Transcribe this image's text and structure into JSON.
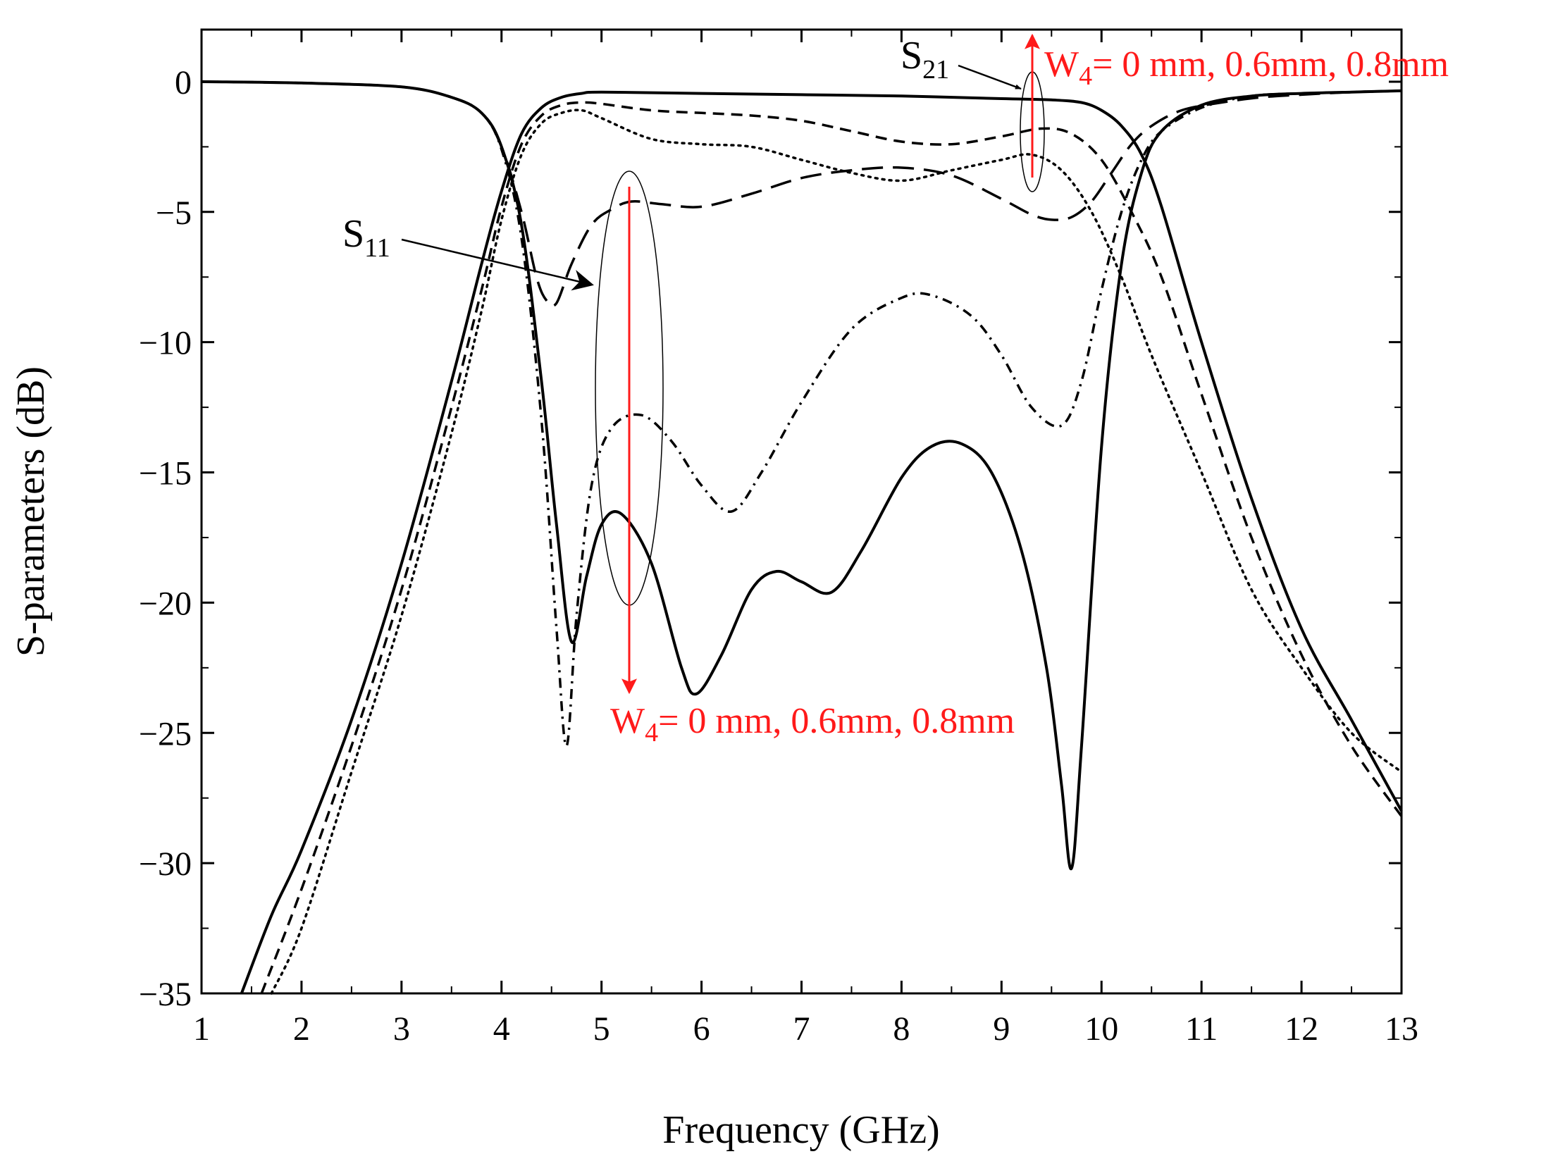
{
  "chart_data": {
    "type": "line",
    "xlabel": "Frequency (GHz)",
    "ylabel": "S-parameters (dB)",
    "xlim": [
      1,
      13
    ],
    "ylim": [
      -35,
      2
    ],
    "xticks": [
      1,
      2,
      3,
      4,
      5,
      6,
      7,
      8,
      9,
      10,
      11,
      12,
      13
    ],
    "yticks": [
      0,
      -5,
      -10,
      -15,
      -20,
      -25,
      -30,
      -35
    ],
    "xtick_labels": [
      "1",
      "2",
      "3",
      "4",
      "5",
      "6",
      "7",
      "8",
      "9",
      "10",
      "11",
      "12",
      "13"
    ],
    "ytick_labels": [
      "0",
      "−5",
      "−10",
      "−15",
      "−20",
      "−25",
      "−30",
      "−35"
    ],
    "grid": false,
    "colors": {
      "curve": "#000000",
      "annotation": "#ff1a1a"
    },
    "series": [
      {
        "name": "S21 W4 = 0 mm",
        "param": "S21",
        "style": "solid",
        "x": [
          1.4,
          1.7,
          2,
          2.5,
          3,
          3.5,
          3.8,
          4,
          4.2,
          4.4,
          4.6,
          4.8,
          5,
          6,
          7,
          8,
          9,
          9.5,
          9.8,
          10,
          10.2,
          10.4,
          10.6,
          11,
          11.5,
          12,
          12.5,
          13
        ],
        "y": [
          -35,
          -32,
          -29.5,
          -24.5,
          -18.5,
          -11.5,
          -7,
          -4.2,
          -2,
          -1,
          -0.6,
          -0.45,
          -0.4,
          -0.45,
          -0.5,
          -0.55,
          -0.65,
          -0.7,
          -0.8,
          -1.1,
          -1.7,
          -2.8,
          -4.8,
          -10,
          -16,
          -21,
          -24.5,
          -28
        ]
      },
      {
        "name": "S21 W4 = 0.6 mm",
        "param": "S21",
        "style": "dash",
        "x": [
          1.6,
          2,
          2.5,
          3,
          3.5,
          3.8,
          4,
          4.2,
          4.4,
          4.6,
          4.8,
          5,
          5.5,
          6,
          6.5,
          7,
          7.5,
          8,
          8.5,
          9,
          9.4,
          9.7,
          10,
          10.3,
          10.6,
          11,
          11.5,
          12,
          12.5,
          13
        ],
        "y": [
          -35,
          -31,
          -25.5,
          -19.5,
          -12.5,
          -8,
          -4.8,
          -2.4,
          -1.3,
          -0.9,
          -0.8,
          -0.85,
          -1.1,
          -1.2,
          -1.3,
          -1.5,
          -1.9,
          -2.3,
          -2.4,
          -2.1,
          -1.8,
          -2,
          -3,
          -5,
          -7.5,
          -12,
          -17.5,
          -22,
          -25.5,
          -28.2
        ]
      },
      {
        "name": "S21 W4 = 0.8 mm",
        "param": "S21",
        "style": "dot",
        "x": [
          1.7,
          2,
          2.5,
          3,
          3.5,
          3.8,
          4,
          4.2,
          4.4,
          4.6,
          4.8,
          5,
          5.5,
          6,
          6.5,
          7,
          7.5,
          8,
          8.5,
          9,
          9.3,
          9.6,
          9.9,
          10.2,
          10.5,
          11,
          11.5,
          12,
          12.5,
          13
        ],
        "y": [
          -35,
          -32.5,
          -26.5,
          -20.5,
          -13.5,
          -8.8,
          -5.3,
          -2.8,
          -1.6,
          -1.2,
          -1.1,
          -1.4,
          -2.2,
          -2.4,
          -2.5,
          -3,
          -3.5,
          -3.8,
          -3.4,
          -3,
          -2.8,
          -3.4,
          -5,
          -7.5,
          -10.5,
          -15,
          -19.5,
          -22.5,
          -25,
          -26.5
        ]
      },
      {
        "name": "S11 W4 = 0 mm",
        "param": "S11",
        "style": "solid",
        "x": [
          1,
          2,
          3,
          3.5,
          3.8,
          4,
          4.2,
          4.4,
          4.55,
          4.7,
          4.85,
          5,
          5.2,
          5.5,
          5.8,
          5.95,
          6.2,
          6.5,
          6.75,
          7,
          7.3,
          7.6,
          8,
          8.3,
          8.6,
          8.9,
          9.2,
          9.45,
          9.6,
          9.7,
          9.8,
          10,
          10.2,
          10.4,
          10.6,
          11,
          11.5,
          12,
          12.5,
          13
        ],
        "y": [
          0,
          -0.05,
          -0.2,
          -0.6,
          -1.2,
          -2.5,
          -5.5,
          -11.5,
          -17,
          -21.5,
          -19,
          -17,
          -16.6,
          -18.5,
          -22.5,
          -23.5,
          -22,
          -19.5,
          -18.8,
          -19.2,
          -19.6,
          -18,
          -15.2,
          -14,
          -13.9,
          -15,
          -18,
          -22.5,
          -27,
          -30.2,
          -25.5,
          -14,
          -7,
          -3.5,
          -1.9,
          -0.9,
          -0.55,
          -0.45,
          -0.4,
          -0.35
        ]
      },
      {
        "name": "S11 W4 = 0.6 mm",
        "param": "S11",
        "style": "dash-dot",
        "x": [
          1,
          2,
          3,
          3.5,
          3.8,
          4,
          4.2,
          4.4,
          4.55,
          4.65,
          4.75,
          4.9,
          5.1,
          5.4,
          5.7,
          6,
          6.3,
          6.6,
          7,
          7.5,
          8,
          8.3,
          8.7,
          9,
          9.3,
          9.6,
          9.8,
          10,
          10.2,
          10.4,
          10.6,
          11,
          11.5,
          12,
          12.5,
          13
        ],
        "y": [
          0,
          -0.05,
          -0.2,
          -0.6,
          -1.2,
          -2.6,
          -6,
          -13,
          -21,
          -25.5,
          -20.5,
          -15.5,
          -13.3,
          -12.8,
          -13.8,
          -15.5,
          -16.5,
          -15,
          -12.3,
          -9.5,
          -8.3,
          -8.2,
          -9,
          -10.5,
          -12.5,
          -13.2,
          -11.5,
          -8,
          -5,
          -3,
          -1.9,
          -1,
          -0.55,
          -0.45,
          -0.4,
          -0.35
        ]
      },
      {
        "name": "S11 W4 = 0.8 mm",
        "param": "S11",
        "style": "long-dash",
        "x": [
          1,
          2,
          3,
          3.5,
          3.8,
          4,
          4.2,
          4.35,
          4.45,
          4.55,
          4.7,
          4.9,
          5.1,
          5.3,
          5.6,
          6,
          6.5,
          7,
          7.5,
          8,
          8.5,
          9,
          9.3,
          9.5,
          9.7,
          9.9,
          10.1,
          10.3,
          10.5,
          10.8,
          11.2,
          11.6,
          12,
          12.5,
          13
        ],
        "y": [
          0,
          -0.05,
          -0.2,
          -0.6,
          -1.2,
          -2.5,
          -5,
          -7.5,
          -8.4,
          -8.5,
          -7,
          -5.5,
          -4.9,
          -4.6,
          -4.7,
          -4.8,
          -4.3,
          -3.7,
          -3.4,
          -3.3,
          -3.6,
          -4.5,
          -5.1,
          -5.3,
          -5.2,
          -4.6,
          -3.5,
          -2.4,
          -1.7,
          -1.1,
          -0.8,
          -0.6,
          -0.5,
          -0.4,
          -0.35
        ]
      }
    ],
    "annotations": {
      "s21_label": "S",
      "s21_sub": "21",
      "s11_label": "S",
      "s11_sub": "11",
      "w4_top_prefix": "W",
      "w4_top_sub": "4",
      "w4_top_text": "= 0 mm, 0.6mm, 0.8mm",
      "w4_bottom_prefix": "W",
      "w4_bottom_sub": "4",
      "w4_bottom_text": "= 0 mm, 0.6mm, 0.8mm"
    }
  }
}
